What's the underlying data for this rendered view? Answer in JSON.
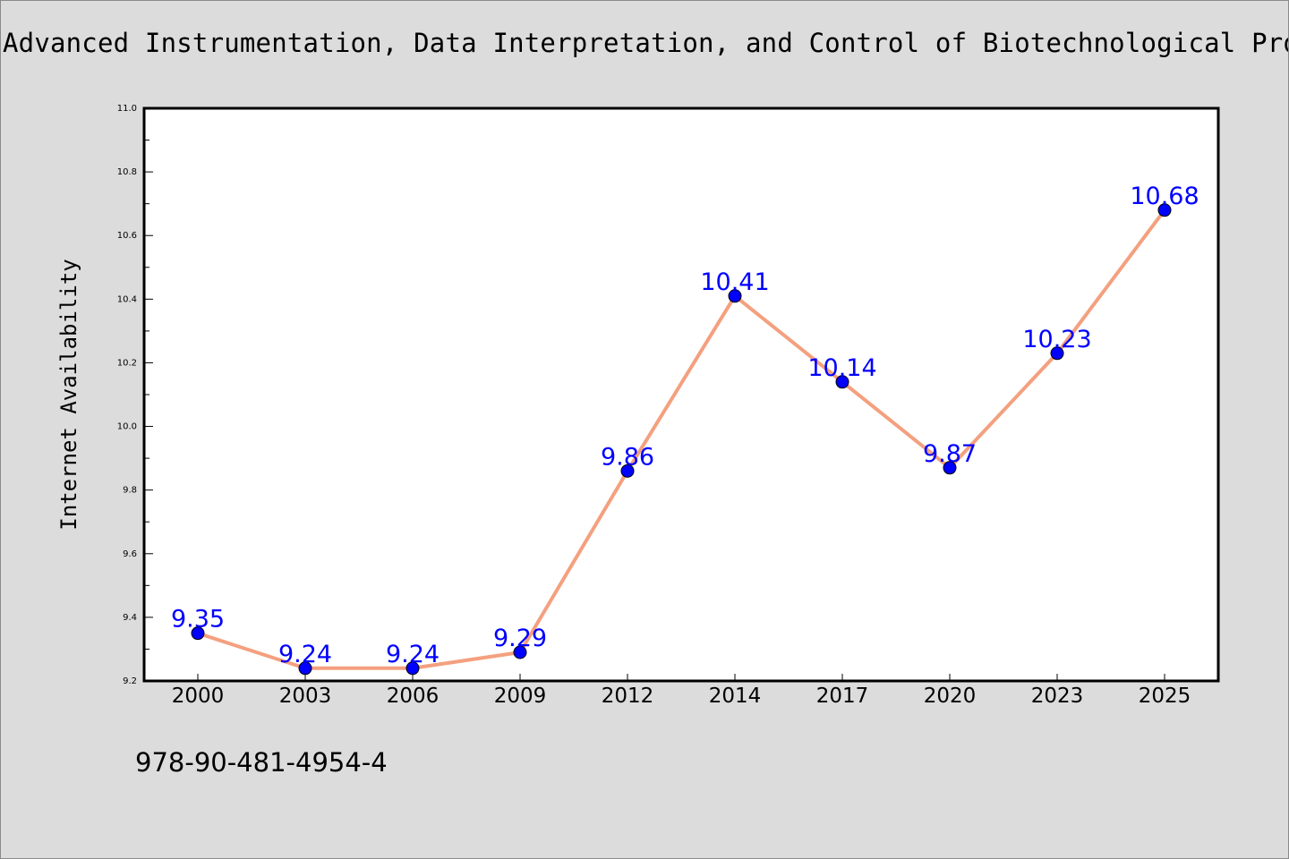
{
  "title": "Advanced Instrumentation, Data Interpretation, and Control of Biotechnological Processes",
  "isbn": "978-90-481-4954-4",
  "colors": {
    "line": "#f4a07f",
    "marker": "#0000ff",
    "data_label": "#0000ff",
    "background": "#dcdcdc",
    "plot_background": "#ffffff"
  },
  "chart_data": {
    "type": "line",
    "title": "Advanced Instrumentation, Data Interpretation, and Control of Biotechnological Processes",
    "xlabel": "",
    "ylabel": "Internet Availability",
    "categories": [
      "2000",
      "2003",
      "2006",
      "2009",
      "2012",
      "2014",
      "2017",
      "2020",
      "2023",
      "2025"
    ],
    "series": [
      {
        "values": [
          9.35,
          9.24,
          9.24,
          9.29,
          9.86,
          10.41,
          10.14,
          9.87,
          10.23,
          10.68
        ]
      }
    ],
    "data_labels": [
      "9.35",
      "9.24",
      "9.24",
      "9.29",
      "9.86",
      "10.41",
      "10.14",
      "9.87",
      "10.23",
      "10.68"
    ],
    "yticks": [
      "9.2",
      "9.4",
      "9.6",
      "9.8",
      "10.0",
      "10.2",
      "10.4",
      "10.6",
      "10.8",
      "11.0"
    ],
    "ylim": [
      9.2,
      11.0
    ],
    "grid": false,
    "legend": "none"
  }
}
